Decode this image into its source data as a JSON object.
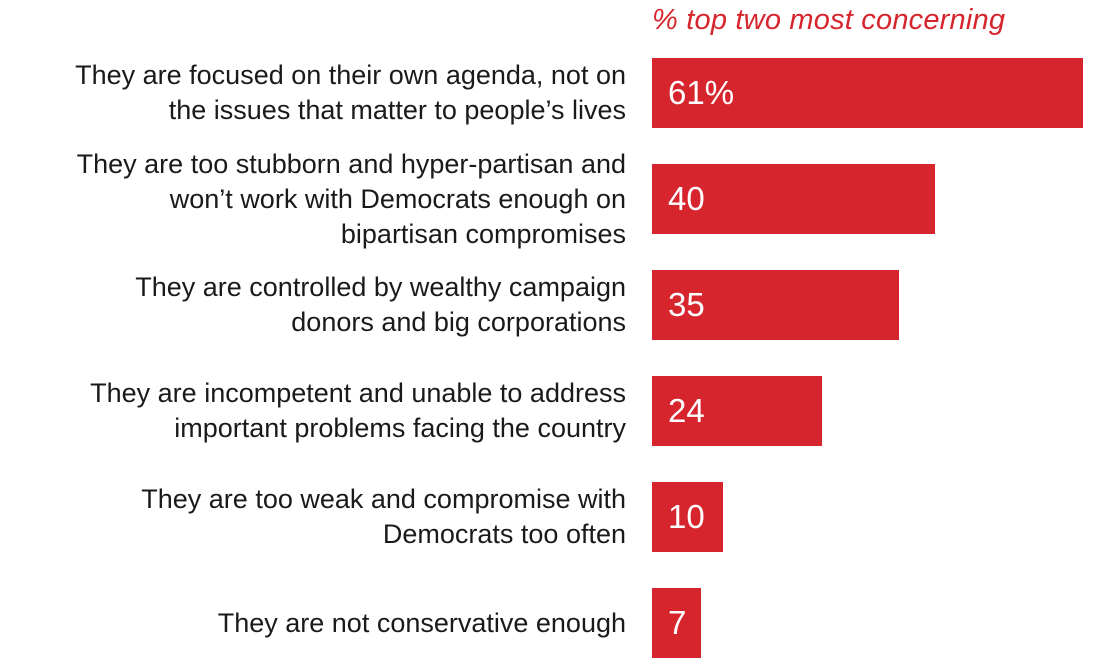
{
  "chart_data": {
    "type": "bar",
    "orientation": "horizontal",
    "header": "% top two most concerning",
    "categories": [
      "They are focused on their own agenda, not on\nthe issues that matter to people’s lives",
      "They are too stubborn and hyper-partisan and\nwon’t work with Democrats enough on\nbipartisan compromises",
      "They are controlled by wealthy campaign\ndonors and big corporations",
      "They are incompetent and unable to address\nimportant problems facing the country",
      "They are too weak and compromise with\nDemocrats too often",
      "They are not conservative enough"
    ],
    "values": [
      61,
      40,
      35,
      24,
      10,
      7
    ],
    "value_labels": [
      "61%",
      "40",
      "35",
      "24",
      "10",
      "7"
    ],
    "xlim": [
      0,
      61
    ],
    "bar_color": "#d7252e",
    "label_color": "#1a1a1a",
    "grid": false
  }
}
